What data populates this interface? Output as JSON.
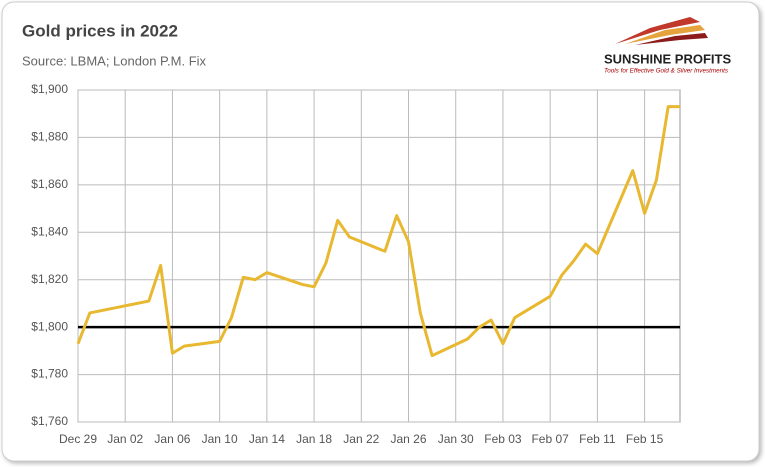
{
  "chart_data": {
    "type": "line",
    "title": "Gold prices in 2022",
    "subtitle": "Source: LBMA; London P.M. Fix",
    "x": [
      0,
      1,
      6,
      7,
      8,
      9,
      12,
      13,
      14,
      15,
      16,
      19,
      20,
      21,
      22,
      23,
      26,
      27,
      28,
      29,
      30,
      33,
      34,
      35,
      36,
      37,
      40,
      41,
      42,
      43,
      44,
      47,
      48,
      49,
      50,
      51
    ],
    "values": [
      1793,
      1806,
      1811,
      1826,
      1789,
      1792,
      1794,
      1804,
      1821,
      1820,
      1823,
      1818,
      1817,
      1827,
      1845,
      1838,
      1832,
      1847,
      1836,
      1806,
      1788,
      1795,
      1800,
      1803,
      1793,
      1804,
      1813,
      1822,
      1828,
      1835,
      1831,
      1866,
      1848,
      1862,
      1893,
      1893
    ],
    "color": "#e8b830",
    "xlim": [
      0,
      51
    ],
    "xticks": [
      {
        "value": 0,
        "label": "Dec 29"
      },
      {
        "value": 4,
        "label": "Jan 02"
      },
      {
        "value": 8,
        "label": "Jan 06"
      },
      {
        "value": 12,
        "label": "Jan 10"
      },
      {
        "value": 16,
        "label": "Jan 14"
      },
      {
        "value": 20,
        "label": "Jan 18"
      },
      {
        "value": 24,
        "label": "Jan 22"
      },
      {
        "value": 28,
        "label": "Jan 26"
      },
      {
        "value": 32,
        "label": "Jan 30"
      },
      {
        "value": 36,
        "label": "Feb 03"
      },
      {
        "value": 40,
        "label": "Feb 07"
      },
      {
        "value": 44,
        "label": "Feb 11"
      },
      {
        "value": 48,
        "label": "Feb 15"
      }
    ],
    "ylim": [
      1760,
      1900
    ],
    "yticks": [
      {
        "value": 1760,
        "label": "$1,760"
      },
      {
        "value": 1780,
        "label": "$1,780"
      },
      {
        "value": 1800,
        "label": "$1,800"
      },
      {
        "value": 1820,
        "label": "$1,820"
      },
      {
        "value": 1840,
        "label": "$1,840"
      },
      {
        "value": 1860,
        "label": "$1,860"
      },
      {
        "value": 1880,
        "label": "$1,880"
      },
      {
        "value": 1900,
        "label": "$1,900"
      }
    ],
    "grid": true,
    "reference_line": 1800
  },
  "logo": {
    "name": "SUNSHINE PROFITS",
    "tagline": "Tools for Effective Gold & Silver Investments"
  }
}
